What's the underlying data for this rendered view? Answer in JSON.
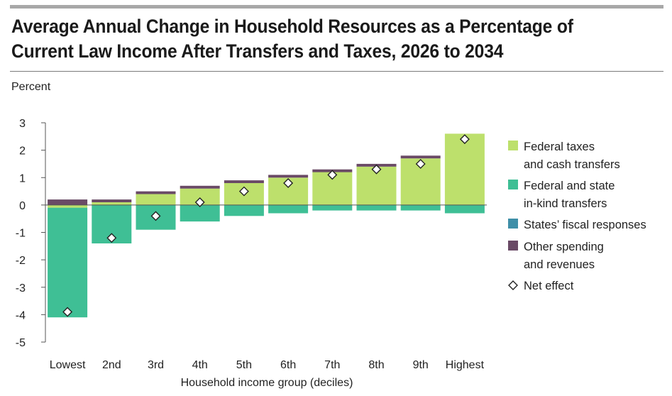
{
  "title_line1": "Average Annual Change in Household Resources as a Percentage of",
  "title_line2": "Current Law Income After Transfers and Taxes, 2026 to 2034",
  "chart_data": {
    "type": "bar",
    "stacked": true,
    "ylabel": "Percent",
    "xlabel": "Household income group (deciles)",
    "ylim": [
      -5,
      3
    ],
    "yticks": [
      3,
      2,
      1,
      0,
      -1,
      -2,
      -3,
      -4,
      -5
    ],
    "yticklabels": [
      "3",
      "2",
      "1",
      "0",
      "-1",
      "-2",
      "-3",
      "-4",
      "-5"
    ],
    "categories": [
      "Lowest",
      "2nd",
      "3rd",
      "4th",
      "5th",
      "6th",
      "7th",
      "8th",
      "9th",
      "Highest"
    ],
    "series": [
      {
        "name": "Federal taxes and cash transfers",
        "legend_line1": "Federal taxes",
        "legend_line2": "and cash transfers",
        "color": "#bde06c",
        "values": [
          -0.1,
          0.1,
          0.4,
          0.6,
          0.8,
          1.0,
          1.2,
          1.4,
          1.7,
          2.6
        ]
      },
      {
        "name": "Federal and state in-kind transfers",
        "legend_line1": "Federal and state",
        "legend_line2": "in-kind transfers",
        "color": "#3fbf95",
        "values": [
          -4.0,
          -1.4,
          -0.9,
          -0.6,
          -0.4,
          -0.3,
          -0.2,
          -0.2,
          -0.2,
          -0.3
        ]
      },
      {
        "name": "States' fiscal responses",
        "legend_line1": "States’ fiscal responses",
        "legend_line2": "",
        "color": "#3f8fa8",
        "values": [
          0,
          0,
          0,
          0,
          0,
          0,
          0,
          0,
          0,
          0
        ]
      },
      {
        "name": "Other spending and revenues",
        "legend_line1": "Other spending",
        "legend_line2": "and revenues",
        "color": "#6a4a66",
        "values": [
          0.2,
          0.1,
          0.1,
          0.1,
          0.1,
          0.1,
          0.1,
          0.1,
          0.1,
          0.0
        ]
      }
    ],
    "net_effect": {
      "name": "Net effect",
      "legend_line1": "Net effect",
      "values": [
        -3.9,
        -1.2,
        -0.4,
        0.1,
        0.5,
        0.8,
        1.1,
        1.3,
        1.5,
        2.4
      ]
    }
  }
}
